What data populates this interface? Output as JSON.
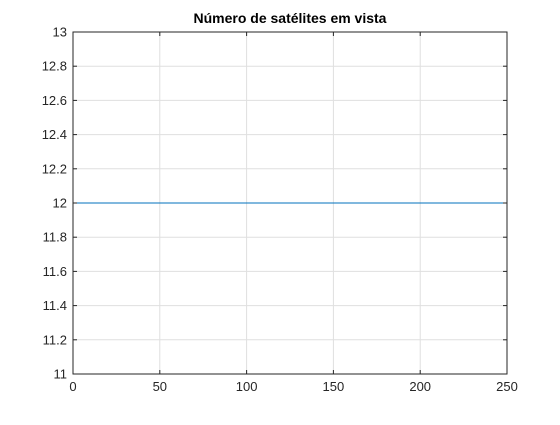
{
  "chart_data": {
    "type": "line",
    "title": "Número de satélites em vista",
    "xlabel": "",
    "ylabel": "",
    "xlim": [
      0,
      250
    ],
    "ylim": [
      11,
      13
    ],
    "x_ticks": [
      0,
      50,
      100,
      150,
      200,
      250
    ],
    "y_ticks": [
      11,
      11.2,
      11.4,
      11.6,
      11.8,
      12,
      12.2,
      12.4,
      12.6,
      12.8,
      13
    ],
    "x_tick_labels": [
      "0",
      "50",
      "100",
      "150",
      "200",
      "250"
    ],
    "y_tick_labels": [
      "11",
      "11.2",
      "11.4",
      "11.6",
      "11.8",
      "12",
      "12.2",
      "12.4",
      "12.6",
      "12.8",
      "13"
    ],
    "grid": true,
    "box": true,
    "series": [
      {
        "x": [
          0,
          250
        ],
        "y": [
          12,
          12
        ],
        "color": "#0072bd"
      }
    ]
  },
  "colors": {
    "axis": "#262626",
    "grid": "#dfdfdf",
    "background": "#ffffff"
  }
}
